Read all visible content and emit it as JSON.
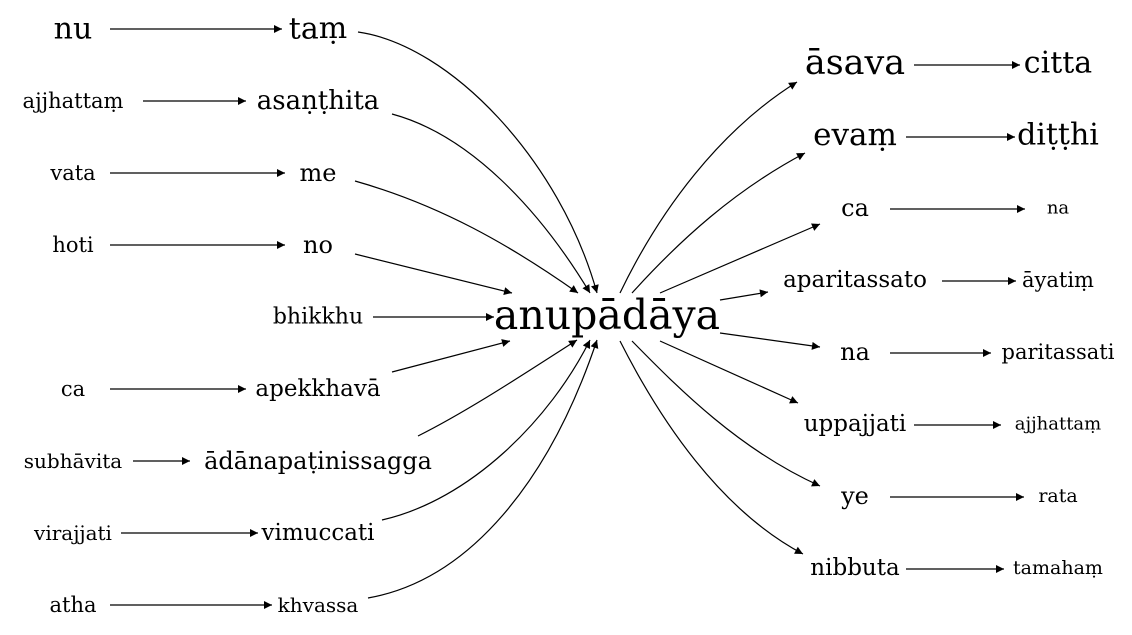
{
  "diagram": {
    "type": "directed-graph",
    "center": "anupādāya",
    "nodes": {
      "nu": "nu",
      "tam": "taṃ",
      "ajjhattam_l": "ajjhattaṃ",
      "asanthita": "asaṇṭhita",
      "vata": "vata",
      "me": "me",
      "hoti": "hoti",
      "no": "no",
      "bhikkhu": "bhikkhu",
      "ca_l": "ca",
      "apekkhava": "apekkhavā",
      "subhavita": "subhāvita",
      "adana": "ādānapaṭinissagga",
      "virajjati": "virajjati",
      "vimuccati": "vimuccati",
      "atha": "atha",
      "khvassa": "khvassa",
      "anupadaya": "anupādāya",
      "asava": "āsava",
      "citta": "citta",
      "evam": "evaṃ",
      "ditthi": "diṭṭhi",
      "ca_r": "ca",
      "na_r1": "na",
      "aparitassato": "aparitassato",
      "ayatim": "āyatiṃ",
      "na_r2": "na",
      "paritassati": "paritassati",
      "uppajjati": "uppajjati",
      "ajjhattam_r": "ajjhattaṃ",
      "ye": "ye",
      "rata": "rata",
      "nibbuta": "nibbuta",
      "tamaham": "tamahaṃ"
    },
    "edges": [
      [
        "nu",
        "tam"
      ],
      [
        "ajjhattam_l",
        "asanthita"
      ],
      [
        "vata",
        "me"
      ],
      [
        "hoti",
        "no"
      ],
      [
        "ca_l",
        "apekkhava"
      ],
      [
        "subhavita",
        "adana"
      ],
      [
        "virajjati",
        "vimuccati"
      ],
      [
        "atha",
        "khvassa"
      ],
      [
        "tam",
        "anupadaya"
      ],
      [
        "asanthita",
        "anupadaya"
      ],
      [
        "me",
        "anupadaya"
      ],
      [
        "no",
        "anupadaya"
      ],
      [
        "bhikkhu",
        "anupadaya"
      ],
      [
        "apekkhava",
        "anupadaya"
      ],
      [
        "adana",
        "anupadaya"
      ],
      [
        "vimuccati",
        "anupadaya"
      ],
      [
        "khvassa",
        "anupadaya"
      ],
      [
        "anupadaya",
        "asava"
      ],
      [
        "anupadaya",
        "evam"
      ],
      [
        "anupadaya",
        "ca_r"
      ],
      [
        "anupadaya",
        "aparitassato"
      ],
      [
        "anupadaya",
        "na_r2"
      ],
      [
        "anupadaya",
        "uppajjati"
      ],
      [
        "anupadaya",
        "ye"
      ],
      [
        "anupadaya",
        "nibbuta"
      ],
      [
        "asava",
        "citta"
      ],
      [
        "evam",
        "ditthi"
      ],
      [
        "ca_r",
        "na_r1"
      ],
      [
        "aparitassato",
        "ayatim"
      ],
      [
        "na_r2",
        "paritassati"
      ],
      [
        "uppajjati",
        "ajjhattam_r"
      ],
      [
        "ye",
        "rata"
      ],
      [
        "nibbuta",
        "tamaham"
      ]
    ]
  }
}
